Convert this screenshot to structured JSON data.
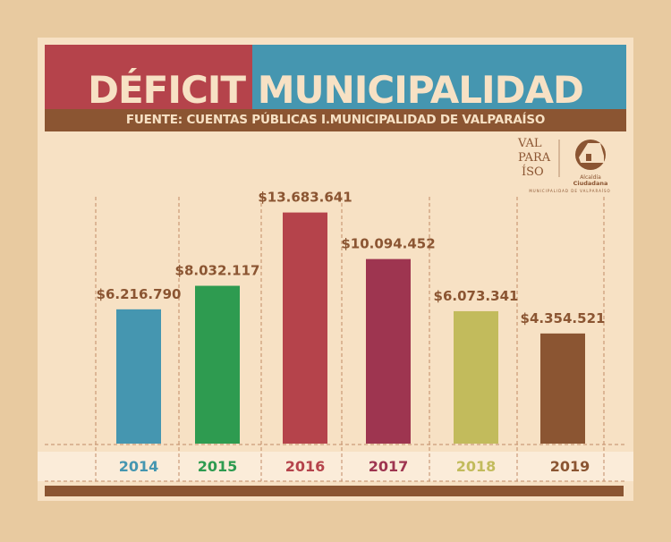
{
  "chart_data": {
    "type": "bar",
    "title": "DÉFICIT MUNICIPALIDAD",
    "title_parts": [
      "DÉFICIT",
      "MUNICIPALIDAD"
    ],
    "subtitle": "FUENTE: CUENTAS PÚBLICAS I.MUNICIPALIDAD DE VALPARAÍSO",
    "categories": [
      "2014",
      "2015",
      "2016",
      "2017",
      "2018",
      "2019"
    ],
    "values": [
      6216790,
      8032117,
      13683641,
      10094452,
      6073341,
      4354521
    ],
    "labels": [
      "$6.216.790",
      "$8.032.117",
      "$13.683.641",
      "$10.094.452",
      "$6.073.341",
      "$4.354.521"
    ],
    "colors": [
      "#4596b0",
      "#2e9b50",
      "#b5434b",
      "#9e3550",
      "#c2bb5c",
      "#8b5532"
    ],
    "xlabel": "",
    "ylabel": ""
  },
  "logo": {
    "city": "VALPARAÍSO",
    "brand_line1": "Alcaldía",
    "brand_line2": "Ciudadana",
    "tagline": "MUNICIPALIDAD DE VALPARAÍSO"
  }
}
